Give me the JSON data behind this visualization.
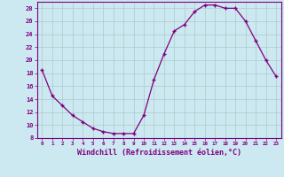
{
  "x": [
    0,
    1,
    2,
    3,
    4,
    5,
    6,
    7,
    8,
    9,
    10,
    11,
    12,
    13,
    14,
    15,
    16,
    17,
    18,
    19,
    20,
    21,
    22,
    23
  ],
  "y": [
    18.5,
    14.5,
    13.0,
    11.5,
    10.5,
    9.5,
    9.0,
    8.7,
    8.7,
    8.7,
    11.5,
    17.0,
    21.0,
    24.5,
    25.5,
    27.5,
    28.5,
    28.5,
    28.0,
    28.0,
    26.0,
    23.0,
    20.0,
    17.5
  ],
  "line_color": "#800080",
  "marker": "P",
  "marker_size": 3,
  "bg_color": "#cce8f0",
  "grid_color": "#aacccc",
  "xlabel": "Windchill (Refroidissement éolien,°C)",
  "xlim": [
    -0.5,
    23.5
  ],
  "ylim": [
    8,
    29
  ],
  "yticks": [
    8,
    10,
    12,
    14,
    16,
    18,
    20,
    22,
    24,
    26,
    28
  ],
  "xticks": [
    0,
    1,
    2,
    3,
    4,
    5,
    6,
    7,
    8,
    9,
    10,
    11,
    12,
    13,
    14,
    15,
    16,
    17,
    18,
    19,
    20,
    21,
    22,
    23
  ],
  "axis_color": "#800080",
  "tick_color": "#800080",
  "label_color": "#800080"
}
